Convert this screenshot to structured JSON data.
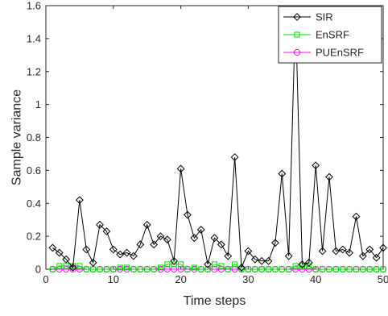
{
  "chart_data": {
    "type": "line",
    "title": "",
    "xlabel": "Time steps",
    "ylabel": "Sample variance",
    "xlim": [
      0,
      50
    ],
    "ylim": [
      0,
      1.6
    ],
    "xticks": [
      0,
      10,
      20,
      30,
      40,
      50
    ],
    "yticks": [
      0,
      0.2,
      0.4,
      0.6,
      0.8,
      1,
      1.2,
      1.4,
      1.6
    ],
    "grid": false,
    "legend_position": "top-right",
    "x": [
      1,
      2,
      3,
      4,
      5,
      6,
      7,
      8,
      9,
      10,
      11,
      12,
      13,
      14,
      15,
      16,
      17,
      18,
      19,
      20,
      21,
      22,
      23,
      24,
      25,
      26,
      27,
      28,
      29,
      30,
      31,
      32,
      33,
      34,
      35,
      36,
      37,
      38,
      39,
      40,
      41,
      42,
      43,
      44,
      45,
      46,
      47,
      48,
      49,
      50
    ],
    "series": [
      {
        "name": "SIR",
        "color": "#000000",
        "marker": "diamond",
        "values": [
          0.13,
          0.1,
          0.06,
          0.01,
          0.42,
          0.12,
          0.04,
          0.27,
          0.23,
          0.12,
          0.09,
          0.1,
          0.08,
          0.15,
          0.27,
          0.15,
          0.2,
          0.18,
          0.05,
          0.61,
          0.33,
          0.19,
          0.24,
          0.03,
          0.19,
          0.15,
          0.08,
          0.68,
          0.01,
          0.11,
          0.06,
          0.05,
          0.05,
          0.16,
          0.58,
          0.08,
          1.57,
          0.03,
          0.04,
          0.63,
          0.11,
          0.56,
          0.11,
          0.12,
          0.1,
          0.32,
          0.08,
          0.12,
          0.07,
          0.13
        ]
      },
      {
        "name": "EnSRF",
        "color": "#00dd00",
        "marker": "square",
        "values": [
          0.0,
          0.02,
          0.02,
          0.02,
          0.02,
          0.0,
          0.0,
          0.0,
          0.0,
          0.0,
          0.01,
          0.01,
          0.0,
          0.0,
          0.0,
          0.0,
          0.01,
          0.03,
          0.03,
          0.03,
          0.0,
          0.01,
          0.0,
          0.0,
          0.03,
          0.02,
          0.0,
          0.03,
          0.0,
          0.0,
          0.0,
          0.0,
          0.0,
          0.0,
          0.0,
          0.0,
          0.02,
          0.02,
          0.02,
          0.0,
          0.0,
          0.0,
          0.0,
          0.0,
          0.0,
          0.0,
          0.0,
          0.0,
          0.0,
          0.0
        ]
      },
      {
        "name": "PUEnSRF",
        "color": "#ff00ff",
        "marker": "circle",
        "values": [
          0.0,
          0.0,
          0.0,
          0.0,
          0.0,
          0.0,
          0.0,
          0.0,
          0.0,
          0.0,
          0.0,
          0.0,
          0.0,
          0.0,
          0.0,
          0.0,
          0.0,
          0.0,
          0.0,
          0.0,
          0.0,
          0.0,
          0.0,
          0.0,
          0.0,
          0.0,
          0.0,
          0.0,
          0.0,
          0.0,
          0.0,
          0.0,
          0.0,
          0.0,
          0.0,
          0.0,
          0.0,
          0.0,
          0.0,
          0.0,
          0.0,
          0.0,
          0.0,
          0.0,
          0.0,
          0.0,
          0.0,
          0.0,
          0.0,
          0.0
        ]
      }
    ]
  }
}
